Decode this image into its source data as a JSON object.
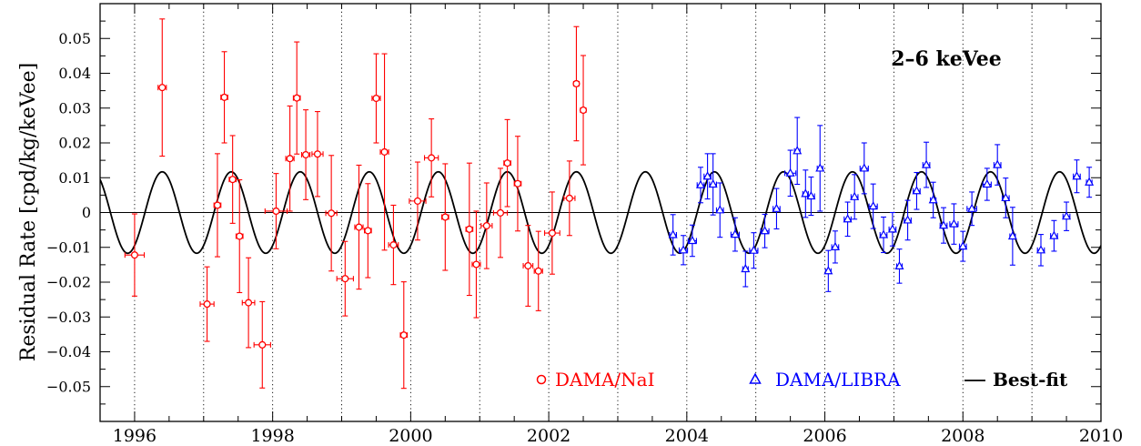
{
  "chart_data": {
    "type": "scatter",
    "ylabel": "Residual Rate [cpd/kg/keVee]",
    "annotation": "2–6 keVee",
    "xlim": [
      1995.5,
      2010
    ],
    "ylim": [
      -0.06,
      0.06
    ],
    "x_ticks": [
      1996,
      1998,
      2000,
      2002,
      2004,
      2006,
      2008,
      2010
    ],
    "x_tick_labels": [
      "1996",
      "1998",
      "2000",
      "2002",
      "2004",
      "2006",
      "2008",
      "2010"
    ],
    "y_ticks": [
      -0.05,
      -0.04,
      -0.03,
      -0.02,
      -0.01,
      0,
      0.01,
      0.02,
      0.03,
      0.04,
      0.05
    ],
    "y_tick_labels": [
      "−0.05",
      "−0.04",
      "−0.03",
      "−0.02",
      "−0.01",
      "0",
      "0.01",
      "0.02",
      "0.03",
      "0.04",
      "0.05"
    ],
    "year_gridlines": true,
    "legend_position": "bottom-right",
    "series": [
      {
        "name": "DAMA/NaI",
        "marker": "circle",
        "color": "#ff0000",
        "points": [
          {
            "x": 1996.0,
            "y": -0.0122,
            "xerr": 0.14,
            "yerr": 0.0118
          },
          {
            "x": 1996.4,
            "y": 0.0359,
            "xerr": 0.06,
            "yerr": 0.0197
          },
          {
            "x": 1997.05,
            "y": -0.0263,
            "xerr": 0.1,
            "yerr": 0.0107
          },
          {
            "x": 1997.2,
            "y": 0.0021,
            "xerr": 0.05,
            "yerr": 0.0148
          },
          {
            "x": 1997.3,
            "y": 0.0331,
            "xerr": 0.05,
            "yerr": 0.0131
          },
          {
            "x": 1997.42,
            "y": 0.0095,
            "xerr": 0.05,
            "yerr": 0.0126
          },
          {
            "x": 1997.52,
            "y": -0.0068,
            "xerr": 0.05,
            "yerr": 0.0162
          },
          {
            "x": 1997.65,
            "y": -0.0259,
            "xerr": 0.09,
            "yerr": 0.0129
          },
          {
            "x": 1997.85,
            "y": -0.038,
            "xerr": 0.12,
            "yerr": 0.0124
          },
          {
            "x": 1998.05,
            "y": 0.0004,
            "xerr": 0.16,
            "yerr": 0.0108
          },
          {
            "x": 1998.25,
            "y": 0.0155,
            "xerr": 0.06,
            "yerr": 0.0151
          },
          {
            "x": 1998.35,
            "y": 0.0329,
            "xerr": 0.05,
            "yerr": 0.0161
          },
          {
            "x": 1998.48,
            "y": 0.0166,
            "xerr": 0.06,
            "yerr": 0.0129
          },
          {
            "x": 1998.65,
            "y": 0.0168,
            "xerr": 0.08,
            "yerr": 0.0122
          },
          {
            "x": 1998.85,
            "y": -0.0002,
            "xerr": 0.08,
            "yerr": 0.0166
          },
          {
            "x": 1999.05,
            "y": -0.019,
            "xerr": 0.12,
            "yerr": 0.0107
          },
          {
            "x": 1999.25,
            "y": -0.0042,
            "xerr": 0.06,
            "yerr": 0.0178
          },
          {
            "x": 1999.38,
            "y": -0.0052,
            "xerr": 0.05,
            "yerr": 0.0135
          },
          {
            "x": 1999.5,
            "y": 0.0328,
            "xerr": 0.06,
            "yerr": 0.0128
          },
          {
            "x": 1999.62,
            "y": 0.0174,
            "xerr": 0.06,
            "yerr": 0.0282
          },
          {
            "x": 1999.75,
            "y": -0.0093,
            "xerr": 0.07,
            "yerr": 0.0114
          },
          {
            "x": 1999.9,
            "y": -0.0352,
            "xerr": 0.05,
            "yerr": 0.0153
          },
          {
            "x": 2000.1,
            "y": 0.0033,
            "xerr": 0.12,
            "yerr": 0.0112
          },
          {
            "x": 2000.3,
            "y": 0.0157,
            "xerr": 0.1,
            "yerr": 0.0112
          },
          {
            "x": 2000.5,
            "y": -0.0013,
            "xerr": 0.05,
            "yerr": 0.0153
          },
          {
            "x": 2000.85,
            "y": -0.0048,
            "xerr": 0.05,
            "yerr": 0.019
          },
          {
            "x": 2000.95,
            "y": -0.0149,
            "xerr": 0.06,
            "yerr": 0.0153
          },
          {
            "x": 2001.1,
            "y": -0.0038,
            "xerr": 0.08,
            "yerr": 0.0123
          },
          {
            "x": 2001.3,
            "y": -0.0001,
            "xerr": 0.1,
            "yerr": 0.0128
          },
          {
            "x": 2001.4,
            "y": 0.0142,
            "xerr": 0.05,
            "yerr": 0.0125
          },
          {
            "x": 2001.55,
            "y": 0.0083,
            "xerr": 0.05,
            "yerr": 0.0136
          },
          {
            "x": 2001.7,
            "y": -0.0153,
            "xerr": 0.07,
            "yerr": 0.0116
          },
          {
            "x": 2001.85,
            "y": -0.0168,
            "xerr": 0.06,
            "yerr": 0.0114
          },
          {
            "x": 2002.05,
            "y": -0.0059,
            "xerr": 0.11,
            "yerr": 0.0118
          },
          {
            "x": 2002.3,
            "y": 0.0041,
            "xerr": 0.08,
            "yerr": 0.0107
          },
          {
            "x": 2002.4,
            "y": 0.037,
            "xerr": 0.04,
            "yerr": 0.0164
          },
          {
            "x": 2002.5,
            "y": 0.0294,
            "xerr": 0.04,
            "yerr": 0.0157
          }
        ]
      },
      {
        "name": "DAMA/LIBRA",
        "marker": "triangle",
        "color": "#0000ff",
        "points": [
          {
            "x": 2003.8,
            "y": -0.0064,
            "xerr": 0.05,
            "yerr": 0.0058
          },
          {
            "x": 2003.95,
            "y": -0.0108,
            "xerr": 0.06,
            "yerr": 0.0042
          },
          {
            "x": 2004.08,
            "y": -0.0081,
            "xerr": 0.06,
            "yerr": 0.0045
          },
          {
            "x": 2004.2,
            "y": 0.0079,
            "xerr": 0.05,
            "yerr": 0.0051
          },
          {
            "x": 2004.3,
            "y": 0.0104,
            "xerr": 0.05,
            "yerr": 0.0065
          },
          {
            "x": 2004.38,
            "y": 0.0081,
            "xerr": 0.05,
            "yerr": 0.0088
          },
          {
            "x": 2004.48,
            "y": 0.0007,
            "xerr": 0.05,
            "yerr": 0.0078
          },
          {
            "x": 2004.7,
            "y": -0.0063,
            "xerr": 0.06,
            "yerr": 0.0048
          },
          {
            "x": 2004.85,
            "y": -0.0162,
            "xerr": 0.04,
            "yerr": 0.0051
          },
          {
            "x": 2004.97,
            "y": -0.0109,
            "xerr": 0.06,
            "yerr": 0.0051
          },
          {
            "x": 2005.13,
            "y": -0.0053,
            "xerr": 0.06,
            "yerr": 0.0048
          },
          {
            "x": 2005.3,
            "y": 0.0011,
            "xerr": 0.05,
            "yerr": 0.0058
          },
          {
            "x": 2005.5,
            "y": 0.0113,
            "xerr": 0.08,
            "yerr": 0.0066
          },
          {
            "x": 2005.6,
            "y": 0.0177,
            "xerr": 0.04,
            "yerr": 0.0096
          },
          {
            "x": 2005.72,
            "y": 0.0054,
            "xerr": 0.04,
            "yerr": 0.0068
          },
          {
            "x": 2005.8,
            "y": 0.0047,
            "xerr": 0.05,
            "yerr": 0.0055
          },
          {
            "x": 2005.93,
            "y": 0.0127,
            "xerr": 0.04,
            "yerr": 0.0123
          },
          {
            "x": 2006.05,
            "y": -0.0168,
            "xerr": 0.04,
            "yerr": 0.0059
          },
          {
            "x": 2006.15,
            "y": -0.0099,
            "xerr": 0.05,
            "yerr": 0.0046
          },
          {
            "x": 2006.33,
            "y": -0.0019,
            "xerr": 0.05,
            "yerr": 0.0049
          },
          {
            "x": 2006.43,
            "y": 0.0045,
            "xerr": 0.05,
            "yerr": 0.0064
          },
          {
            "x": 2006.57,
            "y": 0.0127,
            "xerr": 0.06,
            "yerr": 0.0073
          },
          {
            "x": 2006.7,
            "y": 0.0018,
            "xerr": 0.06,
            "yerr": 0.0064
          },
          {
            "x": 2006.85,
            "y": -0.0064,
            "xerr": 0.05,
            "yerr": 0.0051
          },
          {
            "x": 2006.98,
            "y": -0.0048,
            "xerr": 0.05,
            "yerr": 0.0048
          },
          {
            "x": 2007.08,
            "y": -0.0154,
            "xerr": 0.04,
            "yerr": 0.0049
          },
          {
            "x": 2007.2,
            "y": -0.0022,
            "xerr": 0.05,
            "yerr": 0.0057
          },
          {
            "x": 2007.33,
            "y": 0.0062,
            "xerr": 0.05,
            "yerr": 0.0053
          },
          {
            "x": 2007.47,
            "y": 0.0137,
            "xerr": 0.05,
            "yerr": 0.0065
          },
          {
            "x": 2007.57,
            "y": 0.0036,
            "xerr": 0.04,
            "yerr": 0.0051
          },
          {
            "x": 2007.72,
            "y": -0.0037,
            "xerr": 0.05,
            "yerr": 0.0051
          },
          {
            "x": 2007.87,
            "y": -0.0033,
            "xerr": 0.06,
            "yerr": 0.0058
          },
          {
            "x": 2008.0,
            "y": -0.0097,
            "xerr": 0.05,
            "yerr": 0.0043
          },
          {
            "x": 2008.13,
            "y": 0.0011,
            "xerr": 0.07,
            "yerr": 0.0048
          },
          {
            "x": 2008.35,
            "y": 0.0081,
            "xerr": 0.06,
            "yerr": 0.0046
          },
          {
            "x": 2008.5,
            "y": 0.0137,
            "xerr": 0.05,
            "yerr": 0.0058
          },
          {
            "x": 2008.62,
            "y": 0.0042,
            "xerr": 0.05,
            "yerr": 0.0057
          },
          {
            "x": 2008.72,
            "y": -0.0068,
            "xerr": 0.04,
            "yerr": 0.0083
          },
          {
            "x": 2009.13,
            "y": -0.0108,
            "xerr": 0.05,
            "yerr": 0.0045
          },
          {
            "x": 2009.32,
            "y": -0.0067,
            "xerr": 0.05,
            "yerr": 0.0044
          },
          {
            "x": 2009.5,
            "y": -0.0011,
            "xerr": 0.05,
            "yerr": 0.0041
          },
          {
            "x": 2009.65,
            "y": 0.0104,
            "xerr": 0.05,
            "yerr": 0.0047
          },
          {
            "x": 2009.83,
            "y": 0.0087,
            "xerr": 0.04,
            "yerr": 0.0043
          }
        ]
      },
      {
        "name": "Best-fit",
        "marker": "line",
        "color": "#000000",
        "model": "cosine",
        "amplitude": 0.0117,
        "period_years": 1.0,
        "peak_phase_year": 0.4
      }
    ]
  }
}
